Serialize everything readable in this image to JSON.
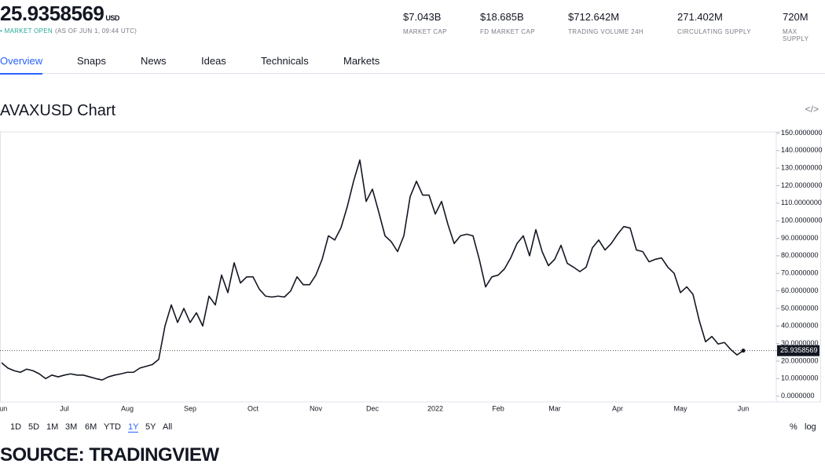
{
  "header": {
    "price": "25.9358569",
    "currency": "USD",
    "status": "MARKET OPEN",
    "as_of": "(AS OF JUN 1, 09:44 UTC)",
    "stats": [
      {
        "value": "$7.043B",
        "label": "MARKET CAP"
      },
      {
        "value": "$18.685B",
        "label": "FD MARKET CAP"
      },
      {
        "value": "$712.642M",
        "label": "TRADING VOLUME 24H"
      },
      {
        "value": "271.402M",
        "label": "CIRCULATING SUPPLY"
      },
      {
        "value": "720M",
        "label": "MAX SUPPLY"
      }
    ]
  },
  "tabs": [
    "Overview",
    "Snaps",
    "News",
    "Ideas",
    "Technicals",
    "Markets"
  ],
  "active_tab": "Overview",
  "ranges": [
    "1D",
    "5D",
    "1M",
    "3M",
    "6M",
    "YTD",
    "1Y",
    "5Y",
    "All"
  ],
  "active_range": "1Y",
  "scale_options": [
    "%",
    "log"
  ],
  "source": "SOURCE: TRADINGVIEW",
  "chart_data": {
    "type": "line",
    "title": "AVAXUSD Chart",
    "color": "#131722",
    "categories": [
      "Jun",
      null,
      null,
      null,
      null,
      null,
      null,
      null,
      null,
      null,
      "Jul",
      null,
      null,
      null,
      null,
      null,
      null,
      null,
      null,
      null,
      "Aug",
      null,
      null,
      null,
      null,
      null,
      null,
      null,
      null,
      null,
      "Sep",
      null,
      null,
      null,
      null,
      null,
      null,
      null,
      null,
      null,
      "Oct",
      null,
      null,
      null,
      null,
      null,
      null,
      null,
      null,
      null,
      "Nov",
      null,
      null,
      null,
      null,
      null,
      null,
      null,
      null,
      "Dec",
      null,
      null,
      null,
      null,
      null,
      null,
      null,
      null,
      null,
      "2022",
      null,
      null,
      null,
      null,
      null,
      null,
      null,
      null,
      null,
      "Feb",
      null,
      null,
      null,
      null,
      null,
      null,
      null,
      null,
      "Mar",
      null,
      null,
      null,
      null,
      null,
      null,
      null,
      null,
      null,
      "Apr",
      null,
      null,
      null,
      null,
      null,
      null,
      null,
      null,
      null,
      "May",
      null,
      null,
      null,
      null,
      null,
      null,
      null,
      null,
      null,
      "Jun"
    ],
    "values": [
      19,
      16,
      14.5,
      13.6,
      15.4,
      14.5,
      12.7,
      10,
      12,
      11,
      12,
      12.7,
      12,
      12,
      11,
      10,
      9.2,
      11,
      12,
      12.7,
      13.6,
      13.6,
      16,
      17,
      18,
      21,
      40,
      52,
      42,
      50,
      42,
      47.5,
      40,
      57,
      52,
      69,
      59,
      76,
      64.5,
      68,
      68,
      61,
      57,
      56.5,
      57,
      56.5,
      60,
      68,
      63.5,
      63.5,
      69,
      78,
      91.4,
      89,
      96,
      108,
      122.5,
      134.6,
      111,
      118,
      105,
      91.4,
      88,
      82.4,
      91.4,
      113.7,
      122.5,
      114.6,
      114.6,
      103.8,
      111,
      98,
      87,
      91.4,
      92.3,
      91.4,
      78,
      62.3,
      68,
      69,
      72.5,
      78.8,
      87,
      91.4,
      80,
      94.9,
      82.4,
      74.4,
      78,
      86,
      75.7,
      73.5,
      71,
      73.5,
      84.6,
      89,
      83.3,
      87,
      92.3,
      96.7,
      95.8,
      83.3,
      82.4,
      76.6,
      78,
      78.8,
      73.5,
      70,
      59,
      62.3,
      58,
      43,
      31,
      34,
      29.7,
      30.6,
      26.6,
      23.5,
      25.9358569
    ],
    "ylim": [
      -2,
      151
    ],
    "yticks": [
      {
        "value": 0,
        "label": "0.0000000"
      },
      {
        "value": 10,
        "label": "10.0000000"
      },
      {
        "value": 20,
        "label": "20.0000000"
      },
      {
        "value": 30,
        "label": "30.0000000"
      },
      {
        "value": 40,
        "label": "40.0000000"
      },
      {
        "value": 50,
        "label": "50.0000000"
      },
      {
        "value": 60,
        "label": "60.0000000"
      },
      {
        "value": 70,
        "label": "70.0000000"
      },
      {
        "value": 80,
        "label": "80.0000000"
      },
      {
        "value": 90,
        "label": "90.0000000"
      },
      {
        "value": 100,
        "label": "100.0000000"
      },
      {
        "value": 110,
        "label": "110.0000000"
      },
      {
        "value": 120,
        "label": "120.0000000"
      },
      {
        "value": 130,
        "label": "130.0000000"
      },
      {
        "value": 140,
        "label": "140.0000000"
      },
      {
        "value": 150,
        "label": "150.0000000"
      }
    ],
    "grid": false
  }
}
